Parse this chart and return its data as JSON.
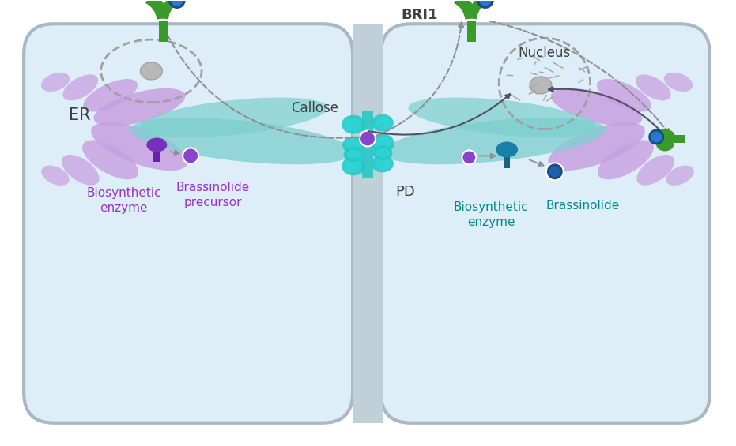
{
  "bg_color": "#ffffff",
  "cell_fill": "#ddeef8",
  "cell_edge": "#aab8c2",
  "purple_arm": "#c8a0e0",
  "teal_tube": "#7ecfcf",
  "callose_color": "#20c8c8",
  "purple_dot": "#8844cc",
  "teal_dot": "#1a6aaa",
  "bri1_green": "#3a9a2a",
  "bri1_blue": "#1a6aaa",
  "arrow_gray": "#909090",
  "text_purple": "#9932CC",
  "text_teal": "#008B8B",
  "text_dark": "#404040",
  "labels": {
    "ER": "ER",
    "Callose": "Callose",
    "PD": "PD",
    "BRI1": "BRI1",
    "Nucleus": "Nucleus",
    "bio_enzyme_left": "Biosynthetic\nenzyme",
    "brassinolide_precursor": "Brassinolide\nprecursor",
    "bio_enzyme_right": "Biosynthetic\nenzyme",
    "brassinolide": "Brassinolide"
  }
}
